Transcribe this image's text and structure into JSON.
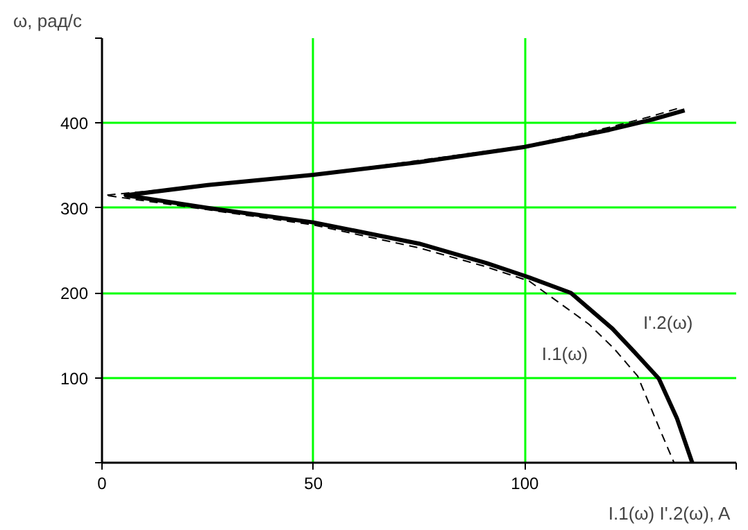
{
  "chart_data": {
    "type": "line",
    "xlabel": "I.1(ω)  I'.2(ω), A",
    "ylabel": "ω, рад/с",
    "xlim": [
      0,
      150
    ],
    "ylim": [
      0,
      500
    ],
    "xticks": [
      0,
      50,
      100,
      {
        "value": 150,
        "label": null
      }
    ],
    "yticks": [
      {
        "value": 0,
        "label": null
      },
      100,
      200,
      300,
      400,
      {
        "value": 500,
        "label": null
      }
    ],
    "grid": true,
    "series": [
      {
        "color": "#000000",
        "line_style": "dashed",
        "x": [
          136,
          130,
          120,
          100,
          50,
          5,
          0.7,
          25,
          50,
          75,
          90,
          101,
          115.2,
          121,
          126.7,
          131.7,
          135.3
        ],
        "values": [
          417,
          408,
          395,
          373,
          339,
          317,
          315,
          298,
          280,
          253,
          232,
          214,
          163,
          135,
          102,
          42,
          0
        ]
      },
      {
        "color": "#000000",
        "line_style": "solid",
        "x": [
          137.8,
          130,
          120,
          100,
          75,
          50,
          25,
          5.6,
          25,
          50,
          75,
          91,
          100,
          110.9,
          120.7,
          126,
          131.7,
          136,
          139.6
        ],
        "values": [
          415,
          404,
          392,
          372,
          354,
          339,
          327,
          315,
          300,
          283,
          258,
          235,
          220,
          200,
          158,
          130,
          99,
          52,
          0
        ]
      }
    ],
    "annotations": [
      "I'.2(ω)",
      "I.1(ω)"
    ]
  }
}
